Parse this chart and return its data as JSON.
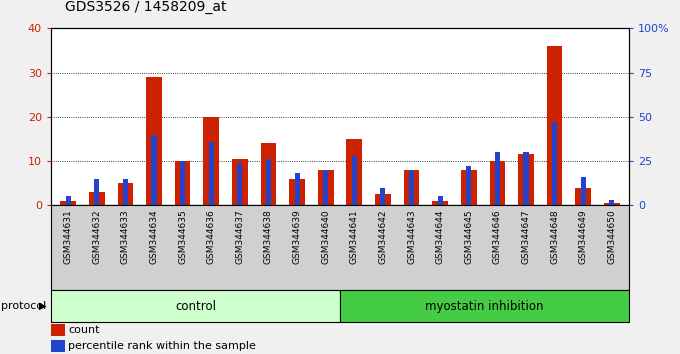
{
  "title": "GDS3526 / 1458209_at",
  "samples": [
    "GSM344631",
    "GSM344632",
    "GSM344633",
    "GSM344634",
    "GSM344635",
    "GSM344636",
    "GSM344637",
    "GSM344638",
    "GSM344639",
    "GSM344640",
    "GSM344641",
    "GSM344642",
    "GSM344643",
    "GSM344644",
    "GSM344645",
    "GSM344646",
    "GSM344647",
    "GSM344648",
    "GSM344649",
    "GSM344650"
  ],
  "count": [
    1,
    3,
    5,
    29,
    10,
    20,
    10.5,
    14,
    6,
    8,
    15,
    2.5,
    8,
    1,
    8,
    10,
    11.5,
    36,
    4,
    0.5
  ],
  "percentile": [
    5,
    15,
    15,
    40,
    25,
    36,
    24,
    26,
    18,
    20,
    28,
    10,
    20,
    5,
    22,
    30,
    30,
    47,
    16,
    3
  ],
  "control_count": 10,
  "ylim_left": [
    0,
    40
  ],
  "ylim_right": [
    0,
    100
  ],
  "yticks_left": [
    0,
    10,
    20,
    30,
    40
  ],
  "yticks_right": [
    0,
    25,
    50,
    75,
    100
  ],
  "ytick_labels_right": [
    "0",
    "25",
    "50",
    "75",
    "100%"
  ],
  "bar_color_red": "#cc2200",
  "bar_color_blue": "#2244cc",
  "bg_plot": "#ffffff",
  "bg_xticklabels": "#d0d0d0",
  "bg_protocol_control": "#ccffcc",
  "bg_protocol_myostatin": "#44cc44",
  "protocol_label": "protocol",
  "protocol_groups": [
    "control",
    "myostatin inhibition"
  ],
  "legend_items": [
    "count",
    "percentile rank within the sample"
  ],
  "red_bar_width": 0.55,
  "blue_bar_width": 0.18
}
